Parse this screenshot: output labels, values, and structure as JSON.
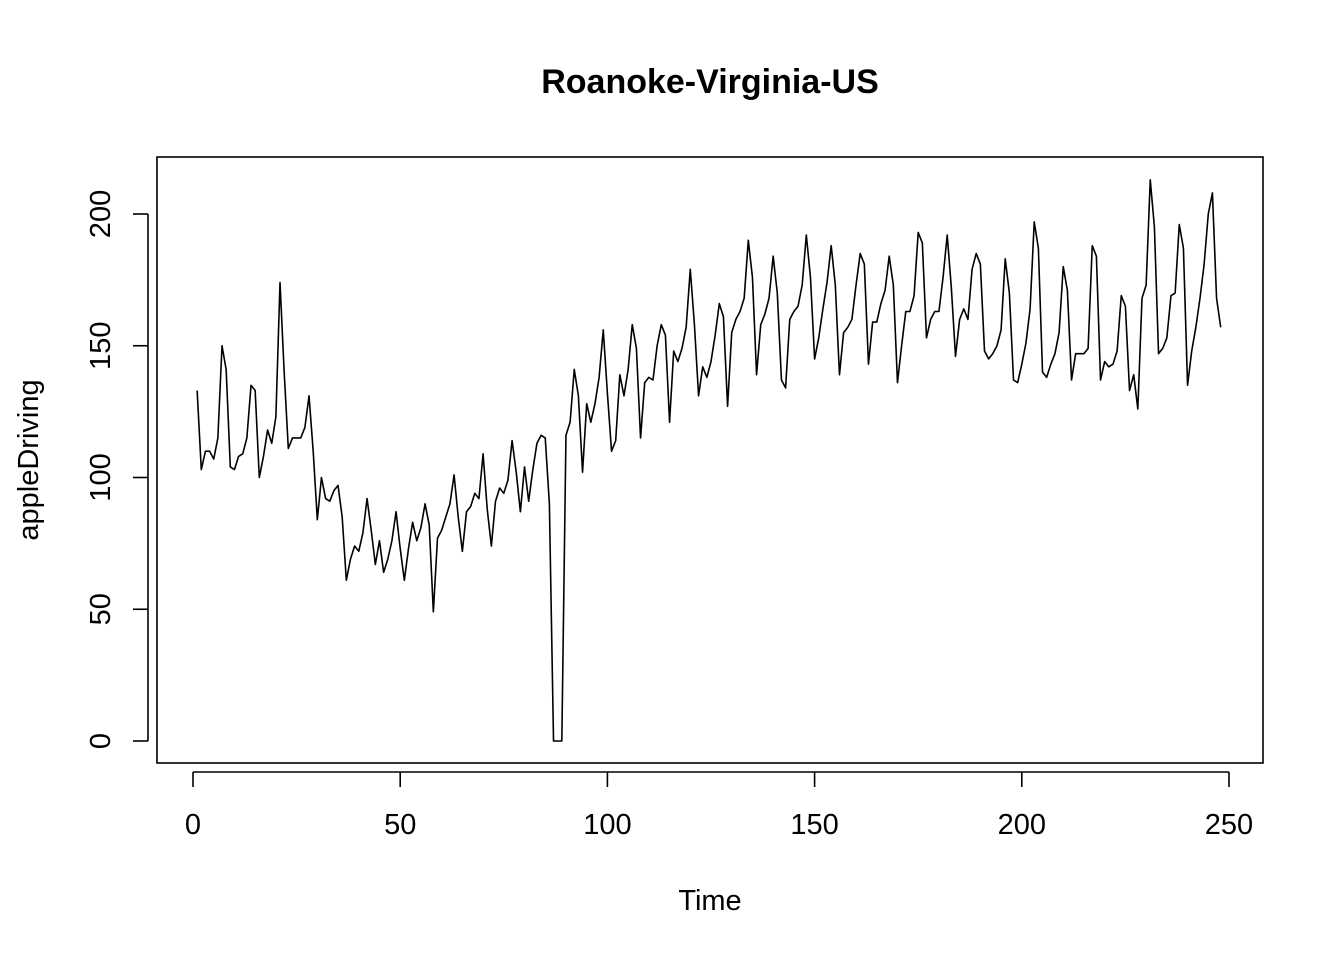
{
  "chart_data": {
    "type": "line",
    "title": "Roanoke-Virginia-US",
    "xlabel": "Time",
    "ylabel": "appleDriving",
    "xlim": [
      1,
      248
    ],
    "ylim": [
      0,
      213
    ],
    "x_ticks": [
      0,
      50,
      100,
      150,
      200,
      250
    ],
    "y_ticks": [
      0,
      50,
      100,
      150,
      200
    ],
    "x_tick_labels": [
      "0",
      "50",
      "100",
      "150",
      "200",
      "250"
    ],
    "y_tick_labels": [
      "0",
      "50",
      "100",
      "150",
      "200"
    ],
    "grid": false,
    "legend": "none",
    "line_color": "#000000",
    "series": [
      {
        "values": [
          133,
          103,
          110,
          110,
          107,
          115,
          150,
          141,
          104,
          103,
          108,
          109,
          115,
          135,
          133,
          100,
          108,
          118,
          113,
          123,
          174,
          140,
          111,
          115,
          115,
          115,
          119,
          131,
          110,
          84,
          100,
          92,
          91,
          95,
          97,
          85,
          61,
          69,
          74,
          72,
          79,
          92,
          80,
          67,
          76,
          64,
          69,
          76,
          87,
          73,
          61,
          73,
          83,
          76,
          81,
          90,
          82,
          49,
          77,
          80,
          85,
          90,
          101,
          85,
          72,
          87,
          89,
          94,
          92,
          109,
          88,
          74,
          91,
          96,
          94,
          99,
          114,
          102,
          87,
          104,
          91,
          103,
          113,
          116,
          115,
          90,
          0,
          0,
          0,
          116,
          121,
          141,
          131,
          102,
          128,
          121,
          128,
          138,
          156,
          132,
          110,
          114,
          139,
          131,
          141,
          158,
          149,
          115,
          136,
          138,
          137,
          150,
          158,
          154,
          121,
          148,
          144,
          149,
          157,
          179,
          158,
          131,
          142,
          138,
          144,
          154,
          166,
          161,
          127,
          155,
          160,
          163,
          168,
          190,
          176,
          139,
          158,
          162,
          168,
          184,
          170,
          137,
          134,
          160,
          163,
          165,
          173,
          192,
          176,
          145,
          153,
          164,
          174,
          188,
          173,
          139,
          155,
          157,
          160,
          173,
          185,
          181,
          143,
          159,
          159,
          166,
          171,
          184,
          173,
          136,
          150,
          163,
          163,
          169,
          193,
          189,
          153,
          160,
          163,
          163,
          176,
          192,
          172,
          146,
          160,
          164,
          160,
          179,
          185,
          181,
          148,
          145,
          147,
          150,
          156,
          183,
          170,
          137,
          136,
          143,
          151,
          164,
          197,
          187,
          140,
          138,
          143,
          147,
          155,
          180,
          171,
          137,
          147,
          147,
          147,
          149,
          188,
          184,
          137,
          144,
          142,
          143,
          148,
          169,
          165,
          133,
          139,
          126,
          168,
          173,
          213,
          195,
          147,
          149,
          153,
          169,
          170,
          196,
          187,
          135,
          148,
          157,
          168,
          181,
          200,
          208,
          168,
          157
        ]
      }
    ]
  }
}
